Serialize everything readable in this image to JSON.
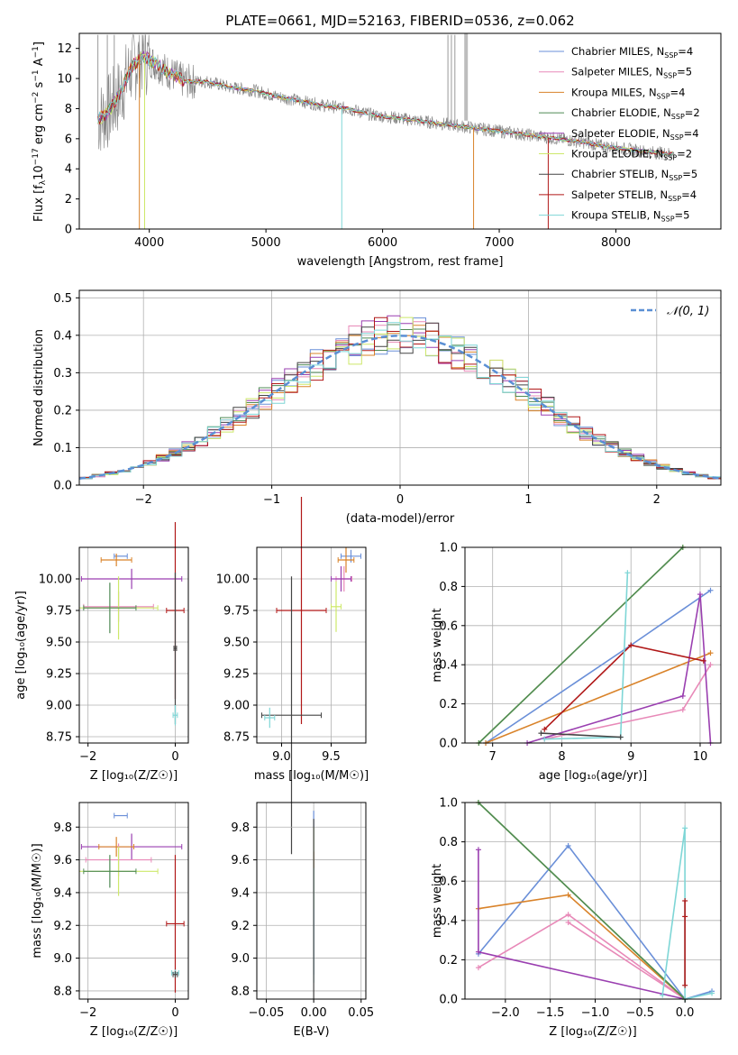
{
  "figure": {
    "title": "PLATE=0661, MJD=52163, FIBERID=0536, z=0.062"
  },
  "colors": {
    "grid": "#b0b0b0",
    "data_spectrum": "#808080",
    "chabrier_miles": "#6a8fd8",
    "salpeter_miles": "#e889b8",
    "kroupa_miles": "#d9832a",
    "chabrier_elodie": "#4f8a55",
    "salpeter_elodie": "#9a3fb0",
    "kroupa_elodie": "#cde86a",
    "chabrier_stelib": "#444444",
    "salpeter_stelib": "#b01818",
    "kroupa_stelib": "#7ed6d6",
    "gaussian": "#5a8fd4"
  },
  "legend": [
    {
      "label": "Chabrier MILES, N",
      "sub": "SSP",
      "tail": "=4",
      "color": "#6a8fd8"
    },
    {
      "label": "Salpeter MILES, N",
      "sub": "SSP",
      "tail": "=5",
      "color": "#e889b8"
    },
    {
      "label": "Kroupa MILES, N",
      "sub": "SSP",
      "tail": "=4",
      "color": "#d9832a"
    },
    {
      "label": "Chabrier ELODIE, N",
      "sub": "SSP",
      "tail": "=2",
      "color": "#4f8a55"
    },
    {
      "label": "Salpeter ELODIE, N",
      "sub": "SSP",
      "tail": "=4",
      "color": "#9a3fb0"
    },
    {
      "label": "Kroupa ELODIE, N",
      "sub": "SSP",
      "tail": "=2",
      "color": "#cde86a"
    },
    {
      "label": "Chabrier STELIB, N",
      "sub": "SSP",
      "tail": "=5",
      "color": "#444444"
    },
    {
      "label": "Salpeter STELIB, N",
      "sub": "SSP",
      "tail": "=4",
      "color": "#b01818"
    },
    {
      "label": "Kroupa STELIB, N",
      "sub": "SSP",
      "tail": "=5",
      "color": "#7ed6d6"
    }
  ],
  "chart_data": [
    {
      "id": "spectrum",
      "type": "line",
      "title": "PLATE=0661, MJD=52163, FIBERID=0536, z=0.062",
      "xlabel": "wavelength [Angstrom, rest frame]",
      "ylabel": "Flux [f_λ 10^-17 erg cm^-2 s^-1 A^-1]",
      "xlim": [
        3400,
        8900
      ],
      "ylim": [
        0,
        13
      ],
      "xticks": [
        "4000",
        "5000",
        "6000",
        "7000",
        "8000"
      ],
      "yticks": [
        "0",
        "2",
        "4",
        "6",
        "8",
        "10",
        "12"
      ],
      "grid": false,
      "legend_position": "top-right",
      "data_trend": {
        "x": [
          3550,
          3650,
          3750,
          3850,
          3950,
          4050,
          4150,
          4300,
          4500,
          4700,
          4900,
          5100,
          5300,
          5500,
          5700,
          5900,
          6100,
          6300,
          6500,
          6700,
          6900,
          7100,
          7300,
          7500,
          7700,
          7900,
          8100,
          8300,
          8500
        ],
        "y": [
          7.2,
          7.8,
          9.0,
          10.8,
          11.5,
          11.0,
          10.5,
          9.8,
          9.8,
          9.4,
          9.2,
          8.8,
          8.5,
          8.2,
          8.0,
          7.6,
          7.4,
          7.2,
          7.0,
          6.8,
          6.6,
          6.4,
          6.2,
          6.0,
          5.8,
          5.5,
          5.3,
          5.1,
          5.0
        ]
      }
    },
    {
      "id": "residuals",
      "type": "line",
      "xlabel": "(data-model)/error",
      "ylabel": "Normed distribution",
      "xlim": [
        -2.5,
        2.5
      ],
      "ylim": [
        0,
        0.52
      ],
      "xticks": [
        "−2",
        "−1",
        "0",
        "1",
        "2"
      ],
      "yticks": [
        "0.0",
        "0.1",
        "0.2",
        "0.3",
        "0.4",
        "0.5"
      ],
      "grid": true,
      "legend_position": "top-right",
      "series": [
        {
          "name": "𝒩(0, 1)",
          "function": "normal_pdf",
          "mean": 0,
          "sigma": 1
        }
      ]
    },
    {
      "id": "age_vs_Z",
      "type": "scatter",
      "xlabel": "Z [log₁₀(Z/Z☉)]",
      "ylabel": "age [log₁₀(age/yr)]",
      "xlim": [
        -2.2,
        0.3
      ],
      "ylim": [
        8.7,
        10.25
      ],
      "xticks": [
        "−2",
        "0"
      ],
      "yticks": [
        "8.75",
        "9.00",
        "9.25",
        "9.50",
        "9.75",
        "10.00"
      ],
      "grid": true,
      "errorbars": [
        {
          "model": "chabrier_miles",
          "x": -1.25,
          "xerr": 0.15,
          "y": 10.18,
          "yerr": 0.0
        },
        {
          "model": "kroupa_miles",
          "x": -1.35,
          "xerr": 0.35,
          "y": 10.15,
          "yerr": 0.05
        },
        {
          "model": "salpeter_elodie",
          "x": -1.0,
          "xerr": 1.15,
          "y": 10.0,
          "yerr": 0.08
        },
        {
          "model": "salpeter_miles",
          "x": -1.3,
          "xerr": 0.8,
          "y": 9.78,
          "yerr": 0.12
        },
        {
          "model": "kroupa_elodie",
          "x": -1.3,
          "xerr": 0.9,
          "y": 9.77,
          "yerr": 0.25
        },
        {
          "model": "chabrier_elodie",
          "x": -1.5,
          "xerr": 0.6,
          "y": 9.77,
          "yerr": 0.2
        },
        {
          "model": "salpeter_stelib",
          "x": 0.0,
          "xerr": 0.2,
          "y": 9.75,
          "yerr": 0.7
        },
        {
          "model": "chabrier_stelib",
          "x": 0.0,
          "xerr": 0.03,
          "y": 9.45,
          "yerr": 0.6
        },
        {
          "model": "kroupa_stelib",
          "x": 0.0,
          "xerr": 0.05,
          "y": 8.92,
          "yerr": 0.08
        }
      ]
    },
    {
      "id": "age_vs_mass",
      "type": "scatter",
      "xlabel": "mass [log₁₀(M/M☉)]",
      "ylabel": "",
      "xlim": [
        8.75,
        9.85
      ],
      "ylim": [
        8.7,
        10.25
      ],
      "xticks": [
        "9.0",
        "9.5"
      ],
      "yticks": [
        "8.75",
        "9.00",
        "9.25",
        "9.50",
        "9.75",
        "10.00"
      ],
      "grid": true,
      "errorbars": [
        {
          "model": "chabrier_miles",
          "x": 9.7,
          "xerr": 0.1,
          "y": 10.18,
          "yerr": 0.05
        },
        {
          "model": "kroupa_miles",
          "x": 9.65,
          "xerr": 0.08,
          "y": 10.15,
          "yerr": 0.1
        },
        {
          "model": "salpeter_miles",
          "x": 9.63,
          "xerr": 0.08,
          "y": 10.0,
          "yerr": 0.1
        },
        {
          "model": "salpeter_elodie",
          "x": 9.6,
          "xerr": 0.1,
          "y": 10.0,
          "yerr": 0.1
        },
        {
          "model": "kroupa_elodie",
          "x": 9.55,
          "xerr": 0.05,
          "y": 9.78,
          "yerr": 0.2
        },
        {
          "model": "salpeter_stelib",
          "x": 9.2,
          "xerr": 0.25,
          "y": 9.75,
          "yerr": 0.9
        },
        {
          "model": "chabrier_stelib",
          "x": 9.1,
          "xerr": 0.3,
          "y": 8.92,
          "yerr": 1.1
        },
        {
          "model": "kroupa_stelib",
          "x": 8.88,
          "xerr": 0.05,
          "y": 8.9,
          "yerr": 0.08
        }
      ]
    },
    {
      "id": "weight_vs_age",
      "type": "line",
      "xlabel": "age [log₁₀(age/yr)]",
      "ylabel": "mass weight",
      "xlim": [
        6.6,
        10.3
      ],
      "ylim": [
        0,
        1
      ],
      "xticks": [
        "7",
        "8",
        "9",
        "10"
      ],
      "yticks": [
        "0.0",
        "0.2",
        "0.4",
        "0.6",
        "0.8",
        "1.0"
      ],
      "grid": true,
      "series": [
        {
          "model": "chabrier_miles",
          "x": [
            6.9,
            9.0,
            10.15
          ],
          "y": [
            0.0,
            0.5,
            0.78
          ]
        },
        {
          "model": "salpeter_miles",
          "x": [
            7.75,
            9.75,
            10.15
          ],
          "y": [
            0.02,
            0.17,
            0.4
          ]
        },
        {
          "model": "kroupa_miles",
          "x": [
            6.9,
            10.15
          ],
          "y": [
            0.0,
            0.46
          ]
        },
        {
          "model": "salpeter_elodie",
          "x": [
            7.5,
            9.75,
            10.0,
            10.15
          ],
          "y": [
            0.0,
            0.24,
            0.76,
            0.0
          ]
        },
        {
          "model": "kroupa_elodie",
          "x": [
            6.8,
            9.75
          ],
          "y": [
            0.0,
            1.0
          ]
        },
        {
          "model": "chabrier_elodie",
          "x": [
            6.8,
            9.75
          ],
          "y": [
            0.0,
            1.0
          ]
        },
        {
          "model": "salpeter_stelib",
          "x": [
            7.75,
            9.0,
            10.05
          ],
          "y": [
            0.07,
            0.5,
            0.42
          ]
        },
        {
          "model": "kroupa_stelib",
          "x": [
            7.75,
            8.85,
            8.95
          ],
          "y": [
            0.02,
            0.03,
            0.87
          ]
        },
        {
          "model": "chabrier_stelib",
          "x": [
            7.7,
            8.85
          ],
          "y": [
            0.05,
            0.03
          ]
        }
      ]
    },
    {
      "id": "mass_vs_Z",
      "type": "scatter",
      "xlabel": "Z [log₁₀(Z/Z☉)]",
      "ylabel": "mass [log₁₀(M/M☉)]",
      "xlim": [
        -2.2,
        0.3
      ],
      "ylim": [
        8.75,
        9.95
      ],
      "xticks": [
        "−2",
        "0"
      ],
      "yticks": [
        "8.8",
        "9.0",
        "9.2",
        "9.4",
        "9.6",
        "9.8"
      ],
      "grid": true,
      "errorbars": [
        {
          "model": "chabrier_miles",
          "x": -1.25,
          "xerr": 0.15,
          "y": 9.87,
          "yerr": 0.0
        },
        {
          "model": "salpeter_elodie",
          "x": -1.0,
          "xerr": 1.15,
          "y": 9.68,
          "yerr": 0.08
        },
        {
          "model": "kroupa_miles",
          "x": -1.35,
          "xerr": 0.4,
          "y": 9.68,
          "yerr": 0.06
        },
        {
          "model": "salpeter_miles",
          "x": -1.3,
          "xerr": 0.75,
          "y": 9.6,
          "yerr": 0.1
        },
        {
          "model": "kroupa_elodie",
          "x": -1.3,
          "xerr": 0.9,
          "y": 9.53,
          "yerr": 0.15
        },
        {
          "model": "chabrier_elodie",
          "x": -1.5,
          "xerr": 0.6,
          "y": 9.53,
          "yerr": 0.1
        },
        {
          "model": "salpeter_stelib",
          "x": 0.0,
          "xerr": 0.2,
          "y": 9.21,
          "yerr": 0.42
        },
        {
          "model": "kroupa_stelib",
          "x": 0.0,
          "xerr": 0.08,
          "y": 8.91,
          "yerr": 0.02
        },
        {
          "model": "chabrier_stelib",
          "x": 0.0,
          "xerr": 0.05,
          "y": 8.9,
          "yerr": 0.02
        }
      ]
    },
    {
      "id": "mass_vs_EBV",
      "type": "scatter",
      "xlabel": "E(B-V)",
      "ylabel": "",
      "xlim": [
        -0.06,
        0.055
      ],
      "ylim": [
        8.75,
        9.95
      ],
      "xticks": [
        "−0.05",
        "0.00",
        "0.05"
      ],
      "yticks": [
        "8.8",
        "9.0",
        "9.2",
        "9.4",
        "9.6",
        "9.8"
      ],
      "grid": true,
      "errorbars": [
        {
          "model": "chabrier_miles",
          "x": 0.0,
          "xerr": 0.0,
          "y": 9.4,
          "yerr": 0.5
        },
        {
          "model": "salpeter_stelib",
          "x": 0.0,
          "xerr": 0.0,
          "y": 9.6,
          "yerr": 0.05
        },
        {
          "model": "kroupa_elodie",
          "x": 0.0,
          "xerr": 0.0,
          "y": 9.55,
          "yerr": 0.25
        },
        {
          "model": "kroupa_stelib",
          "x": 0.0,
          "xerr": 0.0,
          "y": 9.2,
          "yerr": 0.35
        },
        {
          "model": "chabrier_stelib",
          "x": 0.0,
          "xerr": 0.0,
          "y": 9.3,
          "yerr": 0.55
        }
      ]
    },
    {
      "id": "weight_vs_Z",
      "type": "line",
      "xlabel": "Z [log₁₀(Z/Z☉)]",
      "ylabel": "mass weight",
      "xlim": [
        -2.45,
        0.4
      ],
      "ylim": [
        0,
        1
      ],
      "xticks": [
        "−2.0",
        "−1.5",
        "−1.0",
        "−0.5",
        "0.0"
      ],
      "yticks": [
        "0.0",
        "0.2",
        "0.4",
        "0.6",
        "0.8",
        "1.0"
      ],
      "grid": true,
      "series": [
        {
          "model": "chabrier_miles",
          "x": [
            -2.3,
            -1.3,
            0.0,
            0.3
          ],
          "y": [
            0.23,
            0.78,
            0.0,
            0.04
          ]
        },
        {
          "model": "salpeter_miles",
          "x": [
            -2.3,
            -1.3,
            0.0
          ],
          "y": [
            0.16,
            0.43,
            0.0
          ]
        },
        {
          "model": "salpeter_miles_b",
          "x": [
            -1.3,
            0.0
          ],
          "y": [
            0.39,
            0.0
          ]
        },
        {
          "model": "kroupa_miles",
          "x": [
            -2.3,
            -1.3,
            0.0
          ],
          "y": [
            0.46,
            0.53,
            0.0
          ]
        },
        {
          "model": "salpeter_elodie",
          "x": [
            -2.3,
            -2.3,
            0.0
          ],
          "y": [
            0.76,
            0.24,
            0.0
          ]
        },
        {
          "model": "kroupa_elodie",
          "x": [
            -2.3,
            0.0
          ],
          "y": [
            1.0,
            0.0
          ]
        },
        {
          "model": "chabrier_elodie",
          "x": [
            -2.3,
            0.0
          ],
          "y": [
            1.0,
            0.0
          ]
        },
        {
          "model": "kroupa_stelib",
          "x": [
            -0.25,
            0.0,
            0.0,
            0.3
          ],
          "y": [
            0.02,
            0.87,
            0.0,
            0.03
          ]
        },
        {
          "model": "salpeter_stelib",
          "x": [
            0.0,
            0.0,
            0.0
          ],
          "y": [
            0.5,
            0.42,
            0.07
          ]
        }
      ]
    }
  ]
}
